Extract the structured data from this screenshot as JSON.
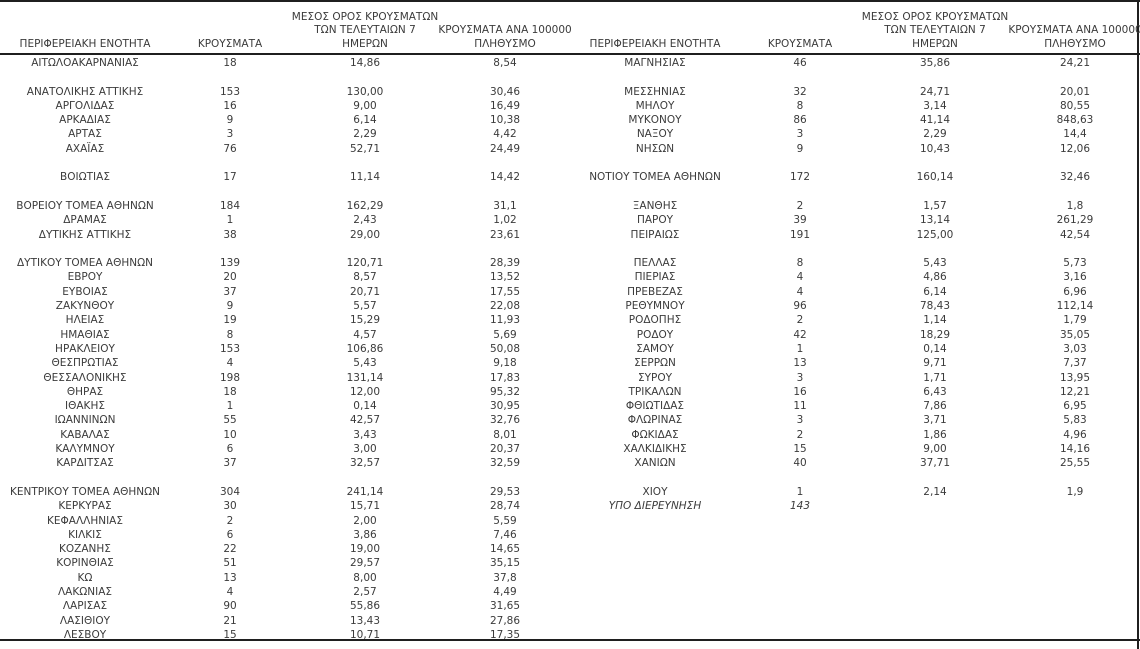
{
  "document": {
    "description_colors": {
      "text": "#3b3b3b",
      "rule_lines": "#1f1f1f",
      "background": "#ffffff"
    },
    "headers": {
      "region": "ΠΕΡΙΦΕΡΕΙΑΚΗ ΕΝΟΤΗΤΑ",
      "cases": "ΚΡΟΥΣΜΑΤΑ",
      "avg7": [
        "ΜΕΣΟΣ ΟΡΟΣ ΚΡΟΥΣΜΑΤΩΝ",
        "ΤΩΝ ΤΕΛΕΥΤΑΙΩΝ 7",
        "ΗΜΕΡΩΝ"
      ],
      "per100k": [
        "ΚΡΟΥΣΜΑΤΑ ΑΝΑ 100000",
        "ΠΛΗΘΥΣΜΟ"
      ]
    },
    "left_rows": [
      {
        "region": "ΑΙΤΩΛΟΑΚΑΡΝΑΝΙΑΣ",
        "cases": "18",
        "avg7": "14,86",
        "per100k": "8,54"
      },
      {},
      {
        "region": "ΑΝΑΤΟΛΙΚΗΣ ΑΤΤΙΚΗΣ",
        "cases": "153",
        "avg7": "130,00",
        "per100k": "30,46"
      },
      {
        "region": "ΑΡΓΟΛΙΔΑΣ",
        "cases": "16",
        "avg7": "9,00",
        "per100k": "16,49"
      },
      {
        "region": "ΑΡΚΑΔΙΑΣ",
        "cases": "9",
        "avg7": "6,14",
        "per100k": "10,38"
      },
      {
        "region": "ΑΡΤΑΣ",
        "cases": "3",
        "avg7": "2,29",
        "per100k": "4,42"
      },
      {
        "region": "ΑΧΑΪΑΣ",
        "cases": "76",
        "avg7": "52,71",
        "per100k": "24,49"
      },
      {},
      {
        "region": "ΒΟΙΩΤΙΑΣ",
        "cases": "17",
        "avg7": "11,14",
        "per100k": "14,42"
      },
      {},
      {
        "region": "ΒΟΡΕΙΟΥ ΤΟΜΕΑ ΑΘΗΝΩΝ",
        "cases": "184",
        "avg7": "162,29",
        "per100k": "31,1"
      },
      {
        "region": "ΔΡΑΜΑΣ",
        "cases": "1",
        "avg7": "2,43",
        "per100k": "1,02"
      },
      {
        "region": "ΔΥΤΙΚΗΣ ΑΤΤΙΚΗΣ",
        "cases": "38",
        "avg7": "29,00",
        "per100k": "23,61"
      },
      {},
      {
        "region": "ΔΥΤΙΚΟΥ ΤΟΜΕΑ ΑΘΗΝΩΝ",
        "cases": "139",
        "avg7": "120,71",
        "per100k": "28,39"
      },
      {
        "region": "ΕΒΡΟΥ",
        "cases": "20",
        "avg7": "8,57",
        "per100k": "13,52"
      },
      {
        "region": "ΕΥΒΟΙΑΣ",
        "cases": "37",
        "avg7": "20,71",
        "per100k": "17,55"
      },
      {
        "region": "ΖΑΚΥΝΘΟΥ",
        "cases": "9",
        "avg7": "5,57",
        "per100k": "22,08"
      },
      {
        "region": "ΗΛΕΙΑΣ",
        "cases": "19",
        "avg7": "15,29",
        "per100k": "11,93"
      },
      {
        "region": "ΗΜΑΘΙΑΣ",
        "cases": "8",
        "avg7": "4,57",
        "per100k": "5,69"
      },
      {
        "region": "ΗΡΑΚΛΕΙΟΥ",
        "cases": "153",
        "avg7": "106,86",
        "per100k": "50,08"
      },
      {
        "region": "ΘΕΣΠΡΩΤΙΑΣ",
        "cases": "4",
        "avg7": "5,43",
        "per100k": "9,18"
      },
      {
        "region": "ΘΕΣΣΑΛΟΝΙΚΗΣ",
        "cases": "198",
        "avg7": "131,14",
        "per100k": "17,83"
      },
      {
        "region": "ΘΗΡΑΣ",
        "cases": "18",
        "avg7": "12,00",
        "per100k": "95,32"
      },
      {
        "region": "ΙΘΑΚΗΣ",
        "cases": "1",
        "avg7": "0,14",
        "per100k": "30,95"
      },
      {
        "region": "ΙΩΑΝΝΙΝΩΝ",
        "cases": "55",
        "avg7": "42,57",
        "per100k": "32,76"
      },
      {
        "region": "ΚΑΒΑΛΑΣ",
        "cases": "10",
        "avg7": "3,43",
        "per100k": "8,01"
      },
      {
        "region": "ΚΑΛΥΜΝΟΥ",
        "cases": "6",
        "avg7": "3,00",
        "per100k": "20,37"
      },
      {
        "region": "ΚΑΡΔΙΤΣΑΣ",
        "cases": "37",
        "avg7": "32,57",
        "per100k": "32,59"
      },
      {},
      {
        "region": "ΚΕΝΤΡΙΚΟΥ ΤΟΜΕΑ ΑΘΗΝΩΝ",
        "cases": "304",
        "avg7": "241,14",
        "per100k": "29,53"
      },
      {
        "region": "ΚΕΡΚΥΡΑΣ",
        "cases": "30",
        "avg7": "15,71",
        "per100k": "28,74"
      },
      {
        "region": "ΚΕΦΑΛΛΗΝΙΑΣ",
        "cases": "2",
        "avg7": "2,00",
        "per100k": "5,59"
      },
      {
        "region": "ΚΙΛΚΙΣ",
        "cases": "6",
        "avg7": "3,86",
        "per100k": "7,46"
      },
      {
        "region": "ΚΟΖΑΝΗΣ",
        "cases": "22",
        "avg7": "19,00",
        "per100k": "14,65"
      },
      {
        "region": "ΚΟΡΙΝΘΙΑΣ",
        "cases": "51",
        "avg7": "29,57",
        "per100k": "35,15"
      },
      {
        "region": "ΚΩ",
        "cases": "13",
        "avg7": "8,00",
        "per100k": "37,8"
      },
      {
        "region": "ΛΑΚΩΝΙΑΣ",
        "cases": "4",
        "avg7": "2,57",
        "per100k": "4,49"
      },
      {
        "region": "ΛΑΡΙΣΑΣ",
        "cases": "90",
        "avg7": "55,86",
        "per100k": "31,65"
      },
      {
        "region": "ΛΑΣΙΘΙΟΥ",
        "cases": "21",
        "avg7": "13,43",
        "per100k": "27,86"
      },
      {
        "region": "ΛΕΣΒΟΥ",
        "cases": "15",
        "avg7": "10,71",
        "per100k": "17,35"
      }
    ],
    "right_rows": [
      {
        "region": "ΜΑΓΝΗΣΙΑΣ",
        "cases": "46",
        "avg7": "35,86",
        "per100k": "24,21"
      },
      {},
      {
        "region": "ΜΕΣΣΗΝΙΑΣ",
        "cases": "32",
        "avg7": "24,71",
        "per100k": "20,01"
      },
      {
        "region": "ΜΗΛΟΥ",
        "cases": "8",
        "avg7": "3,14",
        "per100k": "80,55"
      },
      {
        "region": "ΜΥΚΟΝΟΥ",
        "cases": "86",
        "avg7": "41,14",
        "per100k": "848,63"
      },
      {
        "region": "ΝΑΞΟΥ",
        "cases": "3",
        "avg7": "2,29",
        "per100k": "14,4"
      },
      {
        "region": "ΝΗΣΩΝ",
        "cases": "9",
        "avg7": "10,43",
        "per100k": "12,06"
      },
      {},
      {
        "region": "ΝΟΤΙΟΥ ΤΟΜΕΑ ΑΘΗΝΩΝ",
        "cases": "172",
        "avg7": "160,14",
        "per100k": "32,46"
      },
      {},
      {
        "region": "ΞΑΝΘΗΣ",
        "cases": "2",
        "avg7": "1,57",
        "per100k": "1,8"
      },
      {
        "region": "ΠΑΡΟΥ",
        "cases": "39",
        "avg7": "13,14",
        "per100k": "261,29"
      },
      {
        "region": "ΠΕΙΡΑΙΩΣ",
        "cases": "191",
        "avg7": "125,00",
        "per100k": "42,54"
      },
      {},
      {
        "region": "ΠΕΛΛΑΣ",
        "cases": "8",
        "avg7": "5,43",
        "per100k": "5,73"
      },
      {
        "region": "ΠΙΕΡΙΑΣ",
        "cases": "4",
        "avg7": "4,86",
        "per100k": "3,16"
      },
      {
        "region": "ΠΡΕΒΕΖΑΣ",
        "cases": "4",
        "avg7": "6,14",
        "per100k": "6,96"
      },
      {
        "region": "ΡΕΘΥΜΝΟΥ",
        "cases": "96",
        "avg7": "78,43",
        "per100k": "112,14"
      },
      {
        "region": "ΡΟΔΟΠΗΣ",
        "cases": "2",
        "avg7": "1,14",
        "per100k": "1,79"
      },
      {
        "region": "ΡΟΔΟΥ",
        "cases": "42",
        "avg7": "18,29",
        "per100k": "35,05"
      },
      {
        "region": "ΣΑΜΟΥ",
        "cases": "1",
        "avg7": "0,14",
        "per100k": "3,03"
      },
      {
        "region": "ΣΕΡΡΩΝ",
        "cases": "13",
        "avg7": "9,71",
        "per100k": "7,37"
      },
      {
        "region": "ΣΥΡΟΥ",
        "cases": "3",
        "avg7": "1,71",
        "per100k": "13,95"
      },
      {
        "region": "ΤΡΙΚΑΛΩΝ",
        "cases": "16",
        "avg7": "6,43",
        "per100k": "12,21"
      },
      {
        "region": "ΦΘΙΩΤΙΔΑΣ",
        "cases": "11",
        "avg7": "7,86",
        "per100k": "6,95"
      },
      {
        "region": "ΦΛΩΡΙΝΑΣ",
        "cases": "3",
        "avg7": "3,71",
        "per100k": "5,83"
      },
      {
        "region": "ΦΩΚΙΔΑΣ",
        "cases": "2",
        "avg7": "1,86",
        "per100k": "4,96"
      },
      {
        "region": "ΧΑΛΚΙΔΙΚΗΣ",
        "cases": "15",
        "avg7": "9,00",
        "per100k": "14,16"
      },
      {
        "region": "ΧΑΝΙΩΝ",
        "cases": "40",
        "avg7": "37,71",
        "per100k": "25,55"
      },
      {},
      {
        "region": "ΧΙΟΥ",
        "cases": "1",
        "avg7": "2,14",
        "per100k": "1,9"
      },
      {
        "region": "ΥΠΟ ΔΙΕΡΕΥΝΗΣΗ",
        "cases": "143",
        "avg7": "",
        "per100k": "",
        "italic": true
      }
    ]
  }
}
